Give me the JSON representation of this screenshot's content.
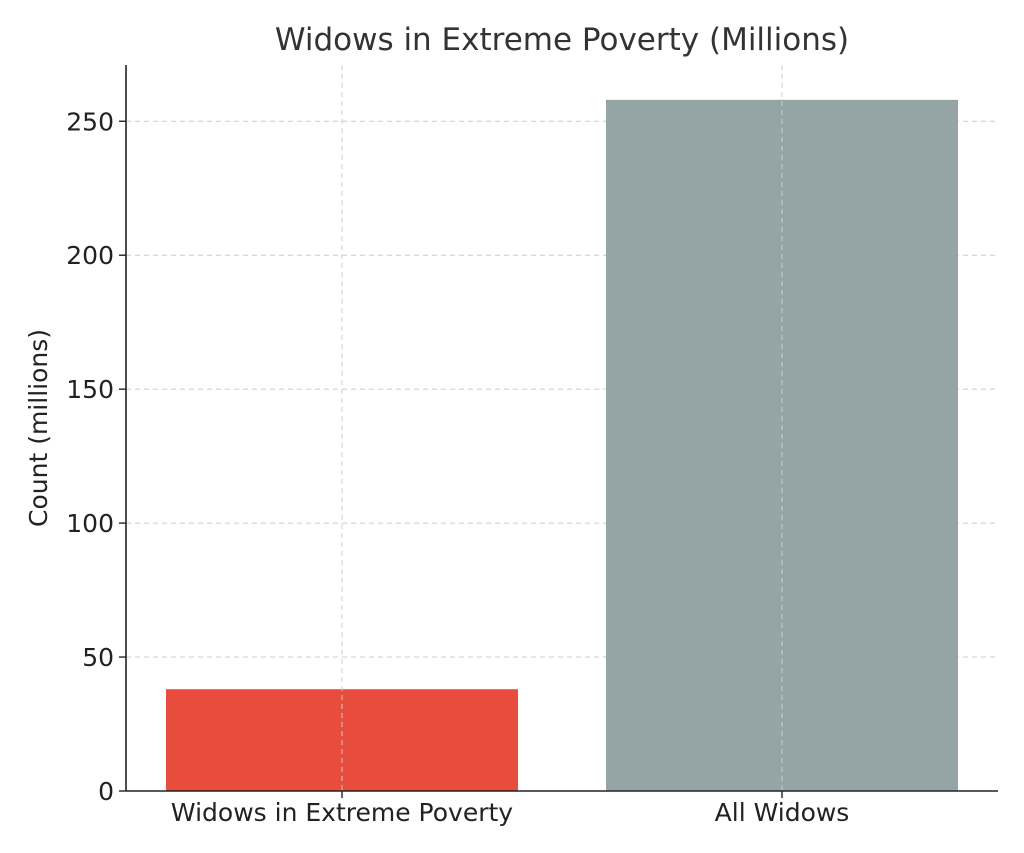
{
  "chart_data": {
    "type": "bar",
    "title": "Widows in Extreme Poverty (Millions)",
    "xlabel": "",
    "ylabel": "Count (millions)",
    "categories": [
      "Widows in Extreme Poverty",
      "All Widows"
    ],
    "values": [
      38,
      258
    ],
    "colors": [
      "#e74c3c",
      "#95a5a6"
    ],
    "ylim": [
      0,
      271
    ],
    "yticks": [
      0,
      50,
      100,
      150,
      200,
      250
    ],
    "grid": true
  }
}
